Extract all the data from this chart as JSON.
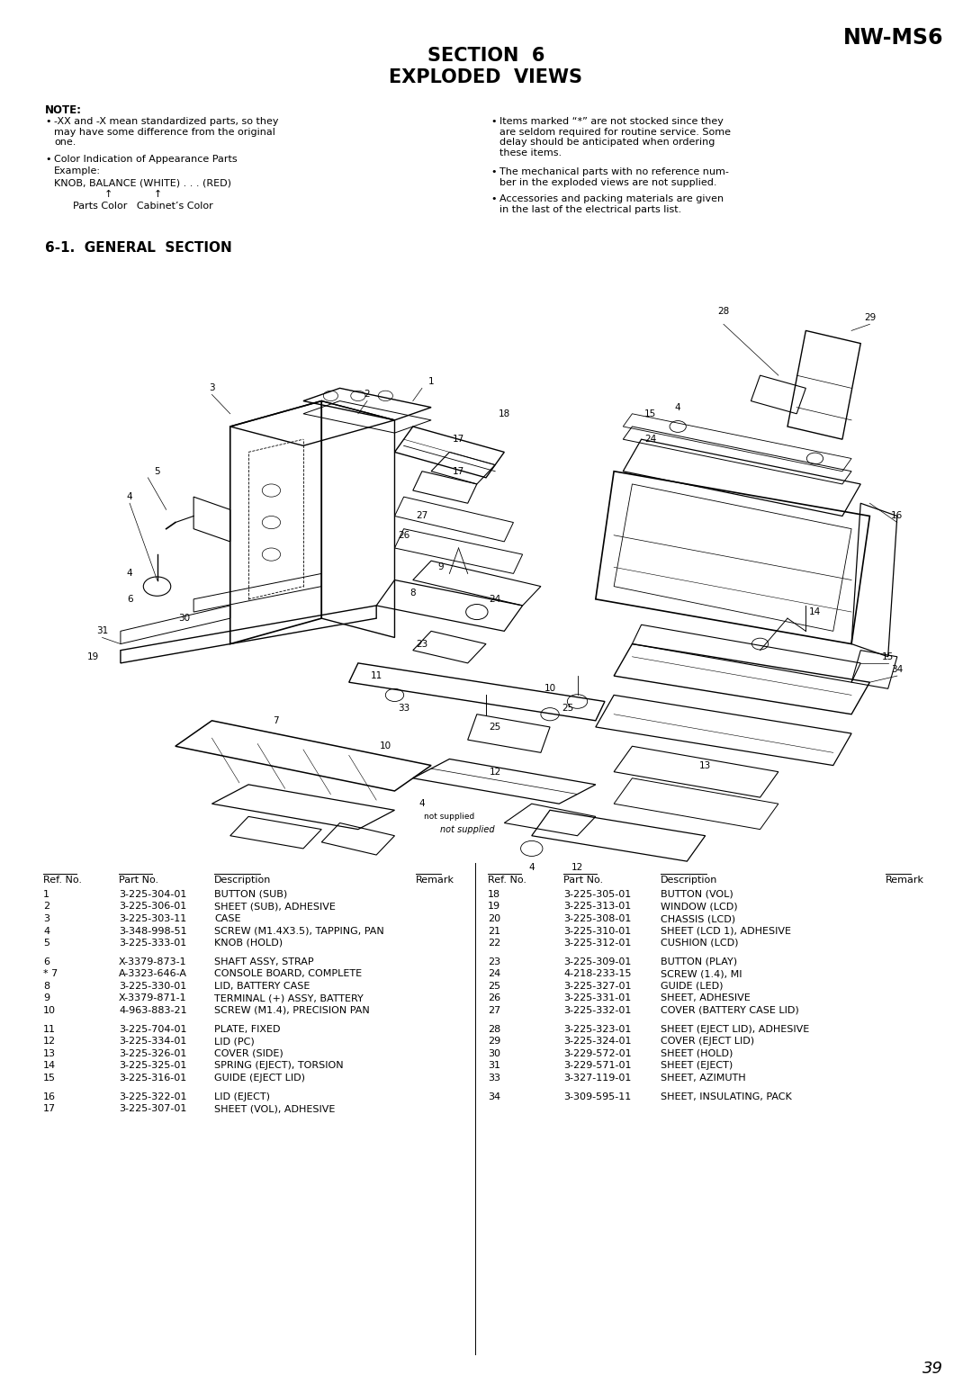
{
  "page_num": "39",
  "header_model": "NW-MS6",
  "title_line1": "SECTION  6",
  "title_line2": "EXPLODED  VIEWS",
  "note_title": "NOTE:",
  "section_title": "6-1.  GENERAL  SECTION",
  "parts_left": [
    [
      "1",
      "3-225-304-01",
      "BUTTON (SUB)",
      ""
    ],
    [
      "2",
      "3-225-306-01",
      "SHEET (SUB), ADHESIVE",
      ""
    ],
    [
      "3",
      "3-225-303-11",
      "CASE",
      ""
    ],
    [
      "4",
      "3-348-998-51",
      "SCREW (M1.4X3.5), TAPPING, PAN",
      ""
    ],
    [
      "5",
      "3-225-333-01",
      "KNOB (HOLD)",
      ""
    ],
    [
      "",
      "",
      "",
      ""
    ],
    [
      "6",
      "X-3379-873-1",
      "SHAFT ASSY, STRAP",
      ""
    ],
    [
      "* 7",
      "A-3323-646-A",
      "CONSOLE BOARD, COMPLETE",
      ""
    ],
    [
      "8",
      "3-225-330-01",
      "LID, BATTERY CASE",
      ""
    ],
    [
      "9",
      "X-3379-871-1",
      "TERMINAL (+) ASSY, BATTERY",
      ""
    ],
    [
      "10",
      "4-963-883-21",
      "SCREW (M1.4), PRECISION PAN",
      ""
    ],
    [
      "",
      "",
      "",
      ""
    ],
    [
      "11",
      "3-225-704-01",
      "PLATE, FIXED",
      ""
    ],
    [
      "12",
      "3-225-334-01",
      "LID (PC)",
      ""
    ],
    [
      "13",
      "3-225-326-01",
      "COVER (SIDE)",
      ""
    ],
    [
      "14",
      "3-225-325-01",
      "SPRING (EJECT), TORSION",
      ""
    ],
    [
      "15",
      "3-225-316-01",
      "GUIDE (EJECT LID)",
      ""
    ],
    [
      "",
      "",
      "",
      ""
    ],
    [
      "16",
      "3-225-322-01",
      "LID (EJECT)",
      ""
    ],
    [
      "17",
      "3-225-307-01",
      "SHEET (VOL), ADHESIVE",
      ""
    ]
  ],
  "parts_right": [
    [
      "18",
      "3-225-305-01",
      "BUTTON (VOL)",
      ""
    ],
    [
      "19",
      "3-225-313-01",
      "WINDOW (LCD)",
      ""
    ],
    [
      "20",
      "3-225-308-01",
      "CHASSIS (LCD)",
      ""
    ],
    [
      "21",
      "3-225-310-01",
      "SHEET (LCD 1), ADHESIVE",
      ""
    ],
    [
      "22",
      "3-225-312-01",
      "CUSHION (LCD)",
      ""
    ],
    [
      "",
      "",
      "",
      ""
    ],
    [
      "23",
      "3-225-309-01",
      "BUTTON (PLAY)",
      ""
    ],
    [
      "24",
      "4-218-233-15",
      "SCREW (1.4), MI",
      ""
    ],
    [
      "25",
      "3-225-327-01",
      "GUIDE (LED)",
      ""
    ],
    [
      "26",
      "3-225-331-01",
      "SHEET, ADHESIVE",
      ""
    ],
    [
      "27",
      "3-225-332-01",
      "COVER (BATTERY CASE LID)",
      ""
    ],
    [
      "",
      "",
      "",
      ""
    ],
    [
      "28",
      "3-225-323-01",
      "SHEET (EJECT LID), ADHESIVE",
      ""
    ],
    [
      "29",
      "3-225-324-01",
      "COVER (EJECT LID)",
      ""
    ],
    [
      "30",
      "3-229-572-01",
      "SHEET (HOLD)",
      ""
    ],
    [
      "31",
      "3-229-571-01",
      "SHEET (EJECT)",
      ""
    ],
    [
      "33",
      "3-327-119-01",
      "SHEET, AZIMUTH",
      ""
    ],
    [
      "",
      "",
      "",
      ""
    ],
    [
      "34",
      "3-309-595-11",
      "SHEET, INSULATING, PACK",
      ""
    ]
  ],
  "bg_color": "#ffffff",
  "text_color": "#000000"
}
